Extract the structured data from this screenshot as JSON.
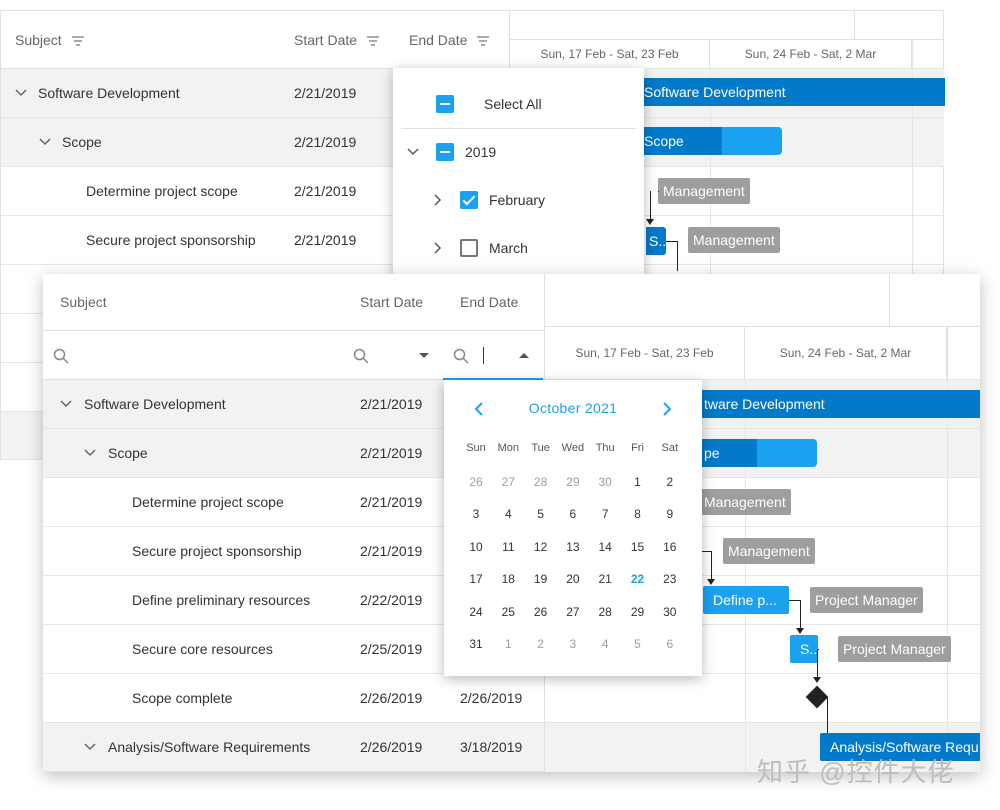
{
  "back_grid": {
    "columns": [
      "Subject",
      "Start Date",
      "End Date"
    ],
    "rows": [
      {
        "subject": "Software Development",
        "start": "2/21/2019",
        "level": 0,
        "parent": true
      },
      {
        "subject": "Scope",
        "start": "2/21/2019",
        "level": 1,
        "parent": true
      },
      {
        "subject": "Determine project scope",
        "start": "2/21/2019",
        "level": 2,
        "parent": false
      },
      {
        "subject": "Secure project sponsorship",
        "start": "2/21/2019",
        "level": 2,
        "parent": false
      }
    ]
  },
  "back_timeline": {
    "weeks": [
      "Sun, 17 Feb - Sat, 23 Feb",
      "Sun, 24 Feb - Sat, 2 Mar"
    ],
    "bars": [
      "Software Development",
      "Scope",
      "S..."
    ],
    "resources": [
      "Management",
      "Management"
    ]
  },
  "checkbox_filter": {
    "items": [
      {
        "label": "Select All",
        "state": "indeterminate"
      },
      {
        "label": "2019",
        "state": "indeterminate"
      },
      {
        "label": "February",
        "state": "checked"
      },
      {
        "label": "March",
        "state": "unchecked"
      }
    ]
  },
  "front_grid": {
    "columns": [
      "Subject",
      "Start Date",
      "End Date"
    ],
    "rows": [
      {
        "subject": "Software Development",
        "start": "2/21/2019",
        "end": "",
        "parent": true
      },
      {
        "subject": "Scope",
        "start": "2/21/2019",
        "end": "",
        "parent": true
      },
      {
        "subject": "Determine project scope",
        "start": "2/21/2019",
        "end": "",
        "parent": false
      },
      {
        "subject": "Secure project sponsorship",
        "start": "2/21/2019",
        "end": "",
        "parent": false
      },
      {
        "subject": "Define preliminary resources",
        "start": "2/22/2019",
        "end": "",
        "parent": false
      },
      {
        "subject": "Secure core resources",
        "start": "2/25/2019",
        "end": "",
        "parent": false
      },
      {
        "subject": "Scope complete",
        "start": "2/26/2019",
        "end": "2/26/2019",
        "parent": false
      },
      {
        "subject": "Analysis/Software Requirements",
        "start": "2/26/2019",
        "end": "3/18/2019",
        "parent": true
      }
    ]
  },
  "front_timeline": {
    "weeks": [
      "Sun, 17 Feb - Sat, 23 Feb",
      "Sun, 24 Feb - Sat, 2 Mar"
    ],
    "bars": [
      "tware Development",
      "pe",
      "Define p...",
      "S...",
      "Analysis/Software Requ"
    ],
    "resources": [
      "Management",
      "Management",
      "Project Manager",
      "Project Manager"
    ]
  },
  "calendar": {
    "title": "October 2021",
    "weekdays": [
      "Sun",
      "Mon",
      "Tue",
      "Wed",
      "Thu",
      "Fri",
      "Sat"
    ],
    "weeks": [
      [
        "26",
        "27",
        "28",
        "29",
        "30",
        "1",
        "2"
      ],
      [
        "3",
        "4",
        "5",
        "6",
        "7",
        "8",
        "9"
      ],
      [
        "10",
        "11",
        "12",
        "13",
        "14",
        "15",
        "16"
      ],
      [
        "17",
        "18",
        "19",
        "20",
        "21",
        "22",
        "23"
      ],
      [
        "24",
        "25",
        "26",
        "27",
        "28",
        "29",
        "30"
      ],
      [
        "31",
        "1",
        "2",
        "3",
        "4",
        "5",
        "6"
      ]
    ],
    "today": "22"
  },
  "watermark": "知乎 @控件大佬",
  "colors": {
    "accent": "#1aa1ef",
    "bar_dark": "#0279c9",
    "resource": "#9e9e9e"
  }
}
